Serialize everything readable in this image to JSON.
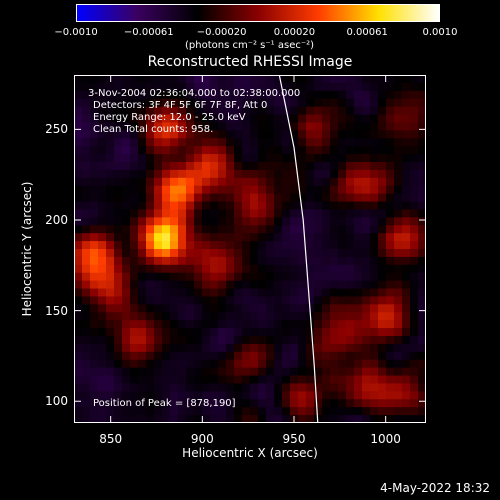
{
  "colorbar": {
    "ticks": [
      "−0.0010",
      "−0.00061",
      "−0.00020",
      "0.00020",
      "0.00061",
      "0.0010"
    ],
    "units": "(photons cm⁻² s⁻¹ asec⁻²)",
    "colors": [
      "#0000ff",
      "#3a0060",
      "#000000",
      "#8a0000",
      "#ff3c00",
      "#ffe000",
      "#ffffff"
    ]
  },
  "info": {
    "line1": "3-Nov-2004 02:36:04.000 to 02:38:00.000",
    "line2": "Detectors: 3F 4F 5F 6F 7F 8F, Att 0",
    "line3": "Energy Range: 12.0 - 25.0 keV",
    "line4": "Clean    Total counts: 958.",
    "peak": "Position of Peak = [878,190]"
  },
  "timestamp": "4-May-2022 18:32",
  "chart_data": {
    "type": "heatmap",
    "title": "Reconstructed RHESSI Image",
    "xlabel": "Heliocentric X (arcsec)",
    "ylabel": "Heliocentric Y (arcsec)",
    "xlim": [
      830,
      1022
    ],
    "ylim": [
      88,
      280
    ],
    "xticks": [
      850,
      900,
      950,
      1000
    ],
    "yticks": [
      100,
      150,
      200,
      250
    ],
    "colorbar_range": [
      -0.001,
      0.001
    ],
    "peak": [
      878,
      190
    ],
    "limb": [
      [
        942,
        280
      ],
      [
        950,
        240
      ],
      [
        955,
        200
      ],
      [
        958,
        160
      ],
      [
        961,
        120
      ],
      [
        963,
        88
      ]
    ],
    "bright_sources": [
      {
        "x": 878,
        "y": 190,
        "w": 1.0
      },
      {
        "x": 885,
        "y": 215,
        "w": 0.75
      },
      {
        "x": 905,
        "y": 230,
        "w": 0.6
      },
      {
        "x": 880,
        "y": 250,
        "w": 0.55
      },
      {
        "x": 840,
        "y": 180,
        "w": 0.75
      },
      {
        "x": 850,
        "y": 160,
        "w": 0.55
      },
      {
        "x": 865,
        "y": 135,
        "w": 0.45
      },
      {
        "x": 905,
        "y": 175,
        "w": 0.45
      },
      {
        "x": 930,
        "y": 210,
        "w": 0.45
      },
      {
        "x": 960,
        "y": 250,
        "w": 0.35
      },
      {
        "x": 990,
        "y": 220,
        "w": 0.5
      },
      {
        "x": 1010,
        "y": 190,
        "w": 0.5
      },
      {
        "x": 1000,
        "y": 150,
        "w": 0.55
      },
      {
        "x": 975,
        "y": 135,
        "w": 0.4
      },
      {
        "x": 1010,
        "y": 105,
        "w": 0.45
      },
      {
        "x": 985,
        "y": 110,
        "w": 0.4
      },
      {
        "x": 925,
        "y": 125,
        "w": 0.35
      },
      {
        "x": 955,
        "y": 100,
        "w": 0.35
      },
      {
        "x": 1015,
        "y": 255,
        "w": 0.35
      }
    ]
  }
}
